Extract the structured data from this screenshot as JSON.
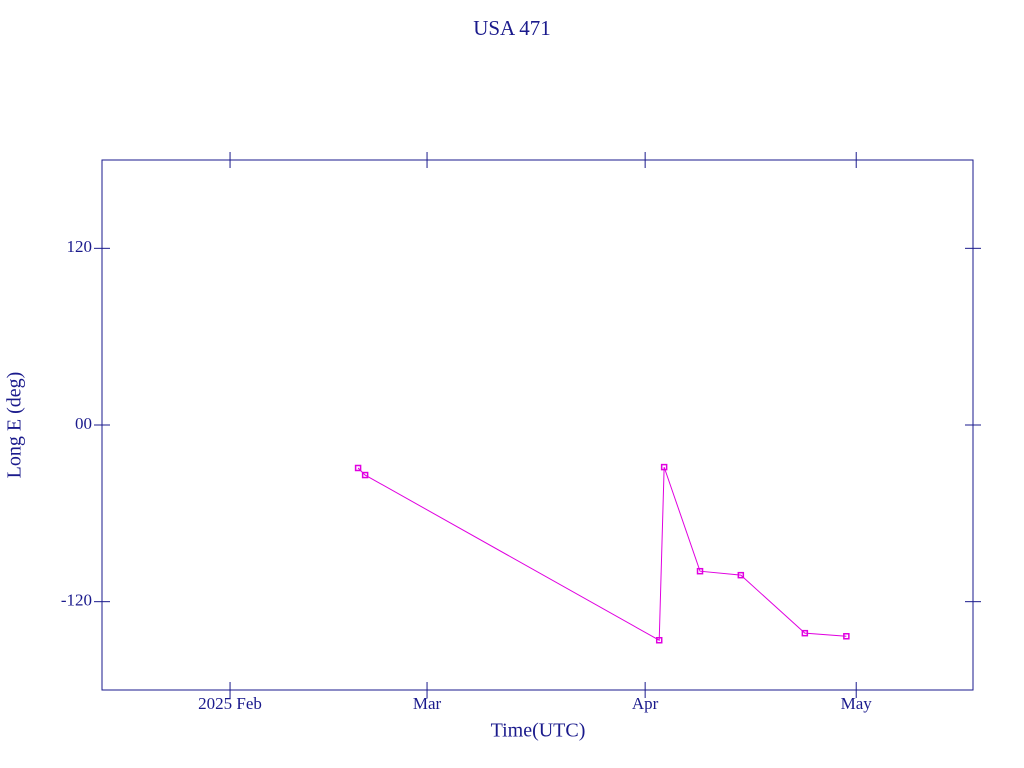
{
  "chart_data": {
    "type": "line",
    "title": "USA 471",
    "xlabel": "Time(UTC)",
    "ylabel": "Long E (deg)",
    "x": [
      49.2,
      50.2,
      92.0,
      92.7,
      97.8,
      103.6,
      112.7,
      118.6
    ],
    "series": [
      {
        "color": "#e000e0",
        "values": [
          -29.2,
          -34,
          -146.2,
          -28.6,
          -99.3,
          -102,
          -141.4,
          -143.5
        ]
      }
    ],
    "xlim": [
      12.8,
      136.6
    ],
    "xticks": [
      {
        "value": 31,
        "label": "2025 Feb"
      },
      {
        "value": 59,
        "label": "Mar"
      },
      {
        "value": 90,
        "label": "Apr"
      },
      {
        "value": 120,
        "label": "May"
      }
    ],
    "ylim": [
      -180,
      180
    ],
    "yticks": [
      -120,
      {
        "value": 0,
        "label": "00"
      },
      120
    ]
  }
}
